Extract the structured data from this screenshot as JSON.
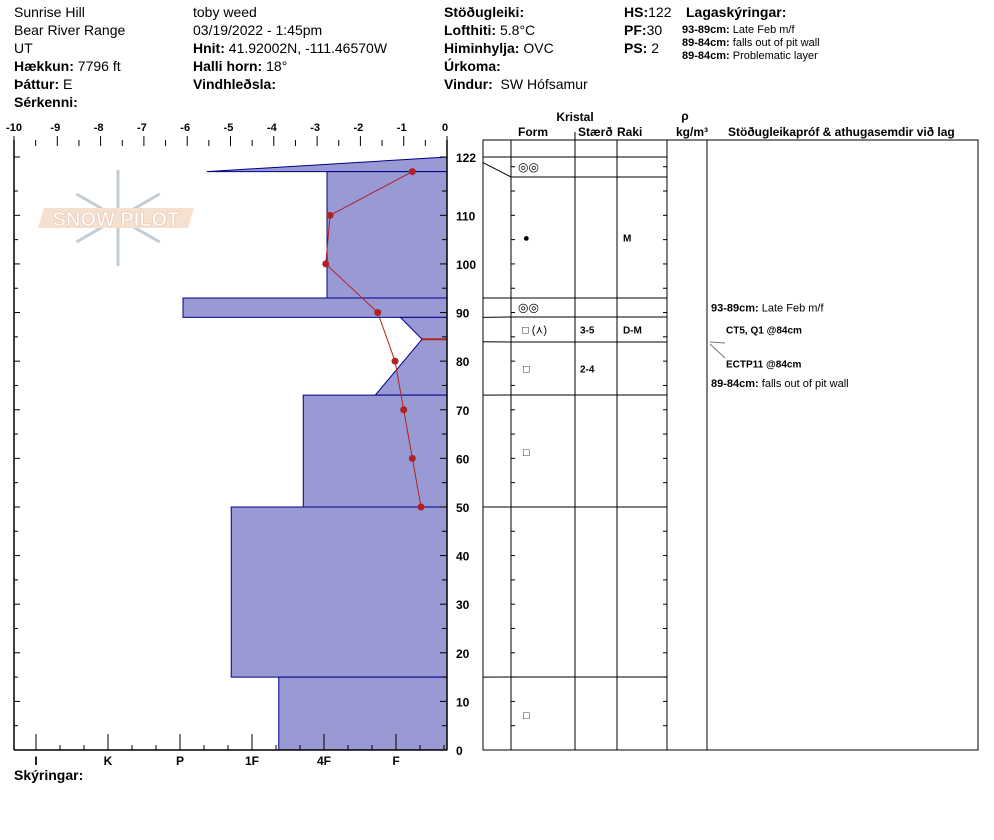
{
  "header": {
    "location": "Sunrise Hill",
    "range": "Bear River Range",
    "state": "UT",
    "elevation_label": "Hækkun:",
    "elevation": "7796 ft",
    "aspect_label": "Þáttur:",
    "aspect": "E",
    "specifics_label": "Sérkenni:",
    "observer": "toby weed",
    "datetime": "03/19/2022 - 1:45pm",
    "coords_label": "Hnit:",
    "coords": "41.92002N, -111.46570W",
    "slope_label": "Halli horn:",
    "slope": "18°",
    "wind_loading_label": "Vindhleðsla:",
    "stability_label": "Stöðugleiki:",
    "air_temp_label": "Lofthiti:",
    "air_temp": "5.8°C",
    "sky_label": "Himinhylja:",
    "sky": "OVC",
    "precip_label": "Úrkoma:",
    "wind_label": "Vindur:",
    "wind": "SW Hófsamur",
    "hs_label": "HS:",
    "hs": "122",
    "pf_label": "PF:",
    "pf": "30",
    "ps_label": "PS:",
    "ps": "2",
    "layer_notes_title": "Lagaskýringar:",
    "layer_notes": [
      {
        "range": "93-89cm:",
        "text": "Late Feb m/f"
      },
      {
        "range": "89-84cm:",
        "text": "falls out of pit wall"
      },
      {
        "range": "89-84cm:",
        "text": "Problematic layer"
      }
    ],
    "legend_label": "Skýringar:"
  },
  "logo": {
    "text": "SNOW PILOT"
  },
  "table": {
    "kristal": "Kristal",
    "form": "Form",
    "size": "Stærð",
    "moisture": "Raki",
    "rho": "ρ",
    "density_unit": "kg/m³",
    "comments": "Stöðugleikapróf & athugasemdir við lag",
    "layers": [
      {
        "top": 122,
        "bottom": 119,
        "form": "◎◎",
        "size": "",
        "moisture": ""
      },
      {
        "top": 119,
        "bottom": 93,
        "form": "●",
        "size": "",
        "moisture": "M"
      },
      {
        "top": 93,
        "bottom": 89,
        "form": "◎◎",
        "size": "",
        "moisture": ""
      },
      {
        "top": 89,
        "bottom": 84,
        "form": "□ (⋏)",
        "size": "3-5",
        "moisture": "D-M"
      },
      {
        "top": 84,
        "bottom": 73,
        "form": "□",
        "size": "2-4",
        "moisture": ""
      },
      {
        "top": 73,
        "bottom": 50,
        "form": "□",
        "size": "",
        "moisture": ""
      },
      {
        "top": 50,
        "bottom": 15,
        "form": "",
        "size": "",
        "moisture": ""
      },
      {
        "top": 15,
        "bottom": 0,
        "form": "□",
        "size": "",
        "moisture": ""
      }
    ],
    "comment_items": [
      {
        "depth": 91,
        "range": "93-89cm:",
        "text": "Late Feb m/f"
      },
      {
        "depth": 86.5,
        "test": "CT5, Q1 @84cm"
      },
      {
        "depth": 79.5,
        "test": "ECTP11 @84cm"
      },
      {
        "depth": 75.5,
        "range": "89-84cm:",
        "text": "falls out of pit wall"
      }
    ]
  },
  "chart_data": {
    "type": "snow-profile",
    "temperature_axis": {
      "ticks": [
        "-10",
        "-9",
        "-8",
        "-7",
        "-6",
        "-5",
        "-4",
        "-3",
        "-2",
        "-1",
        "0"
      ],
      "range": [
        -10,
        0
      ]
    },
    "depth_axis": {
      "ticks": [
        "0",
        "10",
        "20",
        "30",
        "40",
        "50",
        "60",
        "70",
        "80",
        "90",
        "100",
        "110",
        "122"
      ],
      "range": [
        0,
        122
      ]
    },
    "hardness_axis": {
      "ticks": [
        "I",
        "K",
        "P",
        "1F",
        "4F",
        "F"
      ]
    },
    "hardness_layers": [
      {
        "top": 122,
        "bottom": 119,
        "hardness": "P-",
        "profile": [
          [
            122,
            0
          ],
          [
            119,
            3.67
          ]
        ]
      },
      {
        "top": 119,
        "bottom": 93,
        "hardness": "4F",
        "profile": [
          [
            119,
            2
          ],
          [
            93,
            2
          ]
        ]
      },
      {
        "top": 93,
        "bottom": 89,
        "hardness": "P",
        "profile": [
          [
            93,
            4
          ],
          [
            89,
            4
          ]
        ]
      },
      {
        "top": 89,
        "bottom": 73,
        "hardness": "F",
        "profile": [
          [
            89,
            0.98
          ],
          [
            84.5,
            0.68
          ],
          [
            73,
            1.33
          ]
        ]
      },
      {
        "top": 73,
        "bottom": 50,
        "hardness": "4F-",
        "profile": [
          [
            73,
            2.33
          ],
          [
            50,
            2.33
          ]
        ]
      },
      {
        "top": 50,
        "bottom": 15,
        "hardness": "1F-",
        "profile": [
          [
            50,
            3.33
          ],
          [
            15,
            3.33
          ]
        ]
      },
      {
        "top": 15,
        "bottom": 0,
        "hardness": "1F+",
        "profile": [
          [
            15,
            2.67
          ],
          [
            0,
            2.67
          ]
        ]
      }
    ],
    "temperature_profile": [
      {
        "depth": 119,
        "temp": -0.8
      },
      {
        "depth": 110,
        "temp": -2.7
      },
      {
        "depth": 100,
        "temp": -2.8
      },
      {
        "depth": 90,
        "temp": -1.6
      },
      {
        "depth": 80,
        "temp": -1.2
      },
      {
        "depth": 70,
        "temp": -1.0
      },
      {
        "depth": 60,
        "temp": -0.8
      },
      {
        "depth": 50,
        "temp": -0.6
      }
    ],
    "failure_depth": 84.5,
    "colors": {
      "hardness_fill": "#9999d4",
      "hardness_stroke": "#00008b",
      "temperature": "#b22222"
    }
  }
}
